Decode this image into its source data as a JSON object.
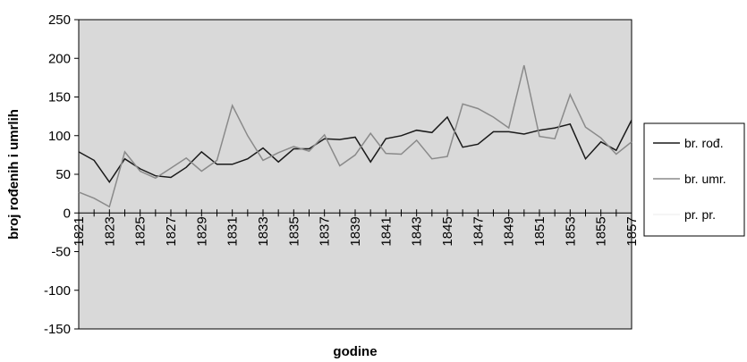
{
  "chart_data": {
    "type": "line",
    "xlabel": "godine",
    "ylabel": "broj rođenih i umrlih",
    "ylim": [
      -150,
      250
    ],
    "yticks": [
      -150,
      -100,
      -50,
      0,
      50,
      100,
      150,
      200,
      250
    ],
    "x": [
      1821,
      1822,
      1823,
      1824,
      1825,
      1826,
      1827,
      1828,
      1829,
      1830,
      1831,
      1832,
      1833,
      1834,
      1835,
      1836,
      1837,
      1838,
      1839,
      1840,
      1841,
      1842,
      1843,
      1844,
      1845,
      1846,
      1847,
      1848,
      1849,
      1850,
      1851,
      1852,
      1853,
      1854,
      1855,
      1856,
      1857
    ],
    "xtick_labels": [
      "1821",
      "1823",
      "1825",
      "1827",
      "1829",
      "1831",
      "1833",
      "1835",
      "1837",
      "1839",
      "1841",
      "1843",
      "1845",
      "1847",
      "1849",
      "1851",
      "1853",
      "1855",
      "1857"
    ],
    "grid": false,
    "plot_background": "#d9d9d9",
    "legend_position": "right",
    "series": [
      {
        "name": "br. rođ.",
        "color": "#1a1a1a",
        "values": [
          79,
          68,
          40,
          70,
          57,
          48,
          46,
          59,
          79,
          63,
          63,
          70,
          84,
          66,
          83,
          83,
          96,
          95,
          98,
          66,
          96,
          100,
          107,
          104,
          124,
          85,
          89,
          105,
          105,
          102,
          107,
          110,
          115,
          70,
          92,
          81,
          120
        ]
      },
      {
        "name": "br. umr.",
        "color": "#8a8a8a",
        "values": [
          27,
          19,
          8,
          79,
          54,
          45,
          58,
          71,
          54,
          68,
          139,
          100,
          68,
          78,
          86,
          80,
          101,
          61,
          75,
          103,
          77,
          76,
          94,
          70,
          73,
          141,
          135,
          124,
          110,
          191,
          99,
          96,
          153,
          111,
          97,
          76,
          92
        ]
      },
      {
        "name": "pr. pr.",
        "color": "#f2f2f2",
        "values": [
          null,
          null,
          null,
          null,
          null,
          null,
          null,
          null,
          null,
          null,
          null,
          null,
          null,
          null,
          null,
          null,
          null,
          null,
          null,
          null,
          null,
          null,
          null,
          null,
          null,
          null,
          null,
          null,
          null,
          null,
          null,
          null,
          null,
          null,
          null,
          null,
          null
        ]
      }
    ]
  }
}
